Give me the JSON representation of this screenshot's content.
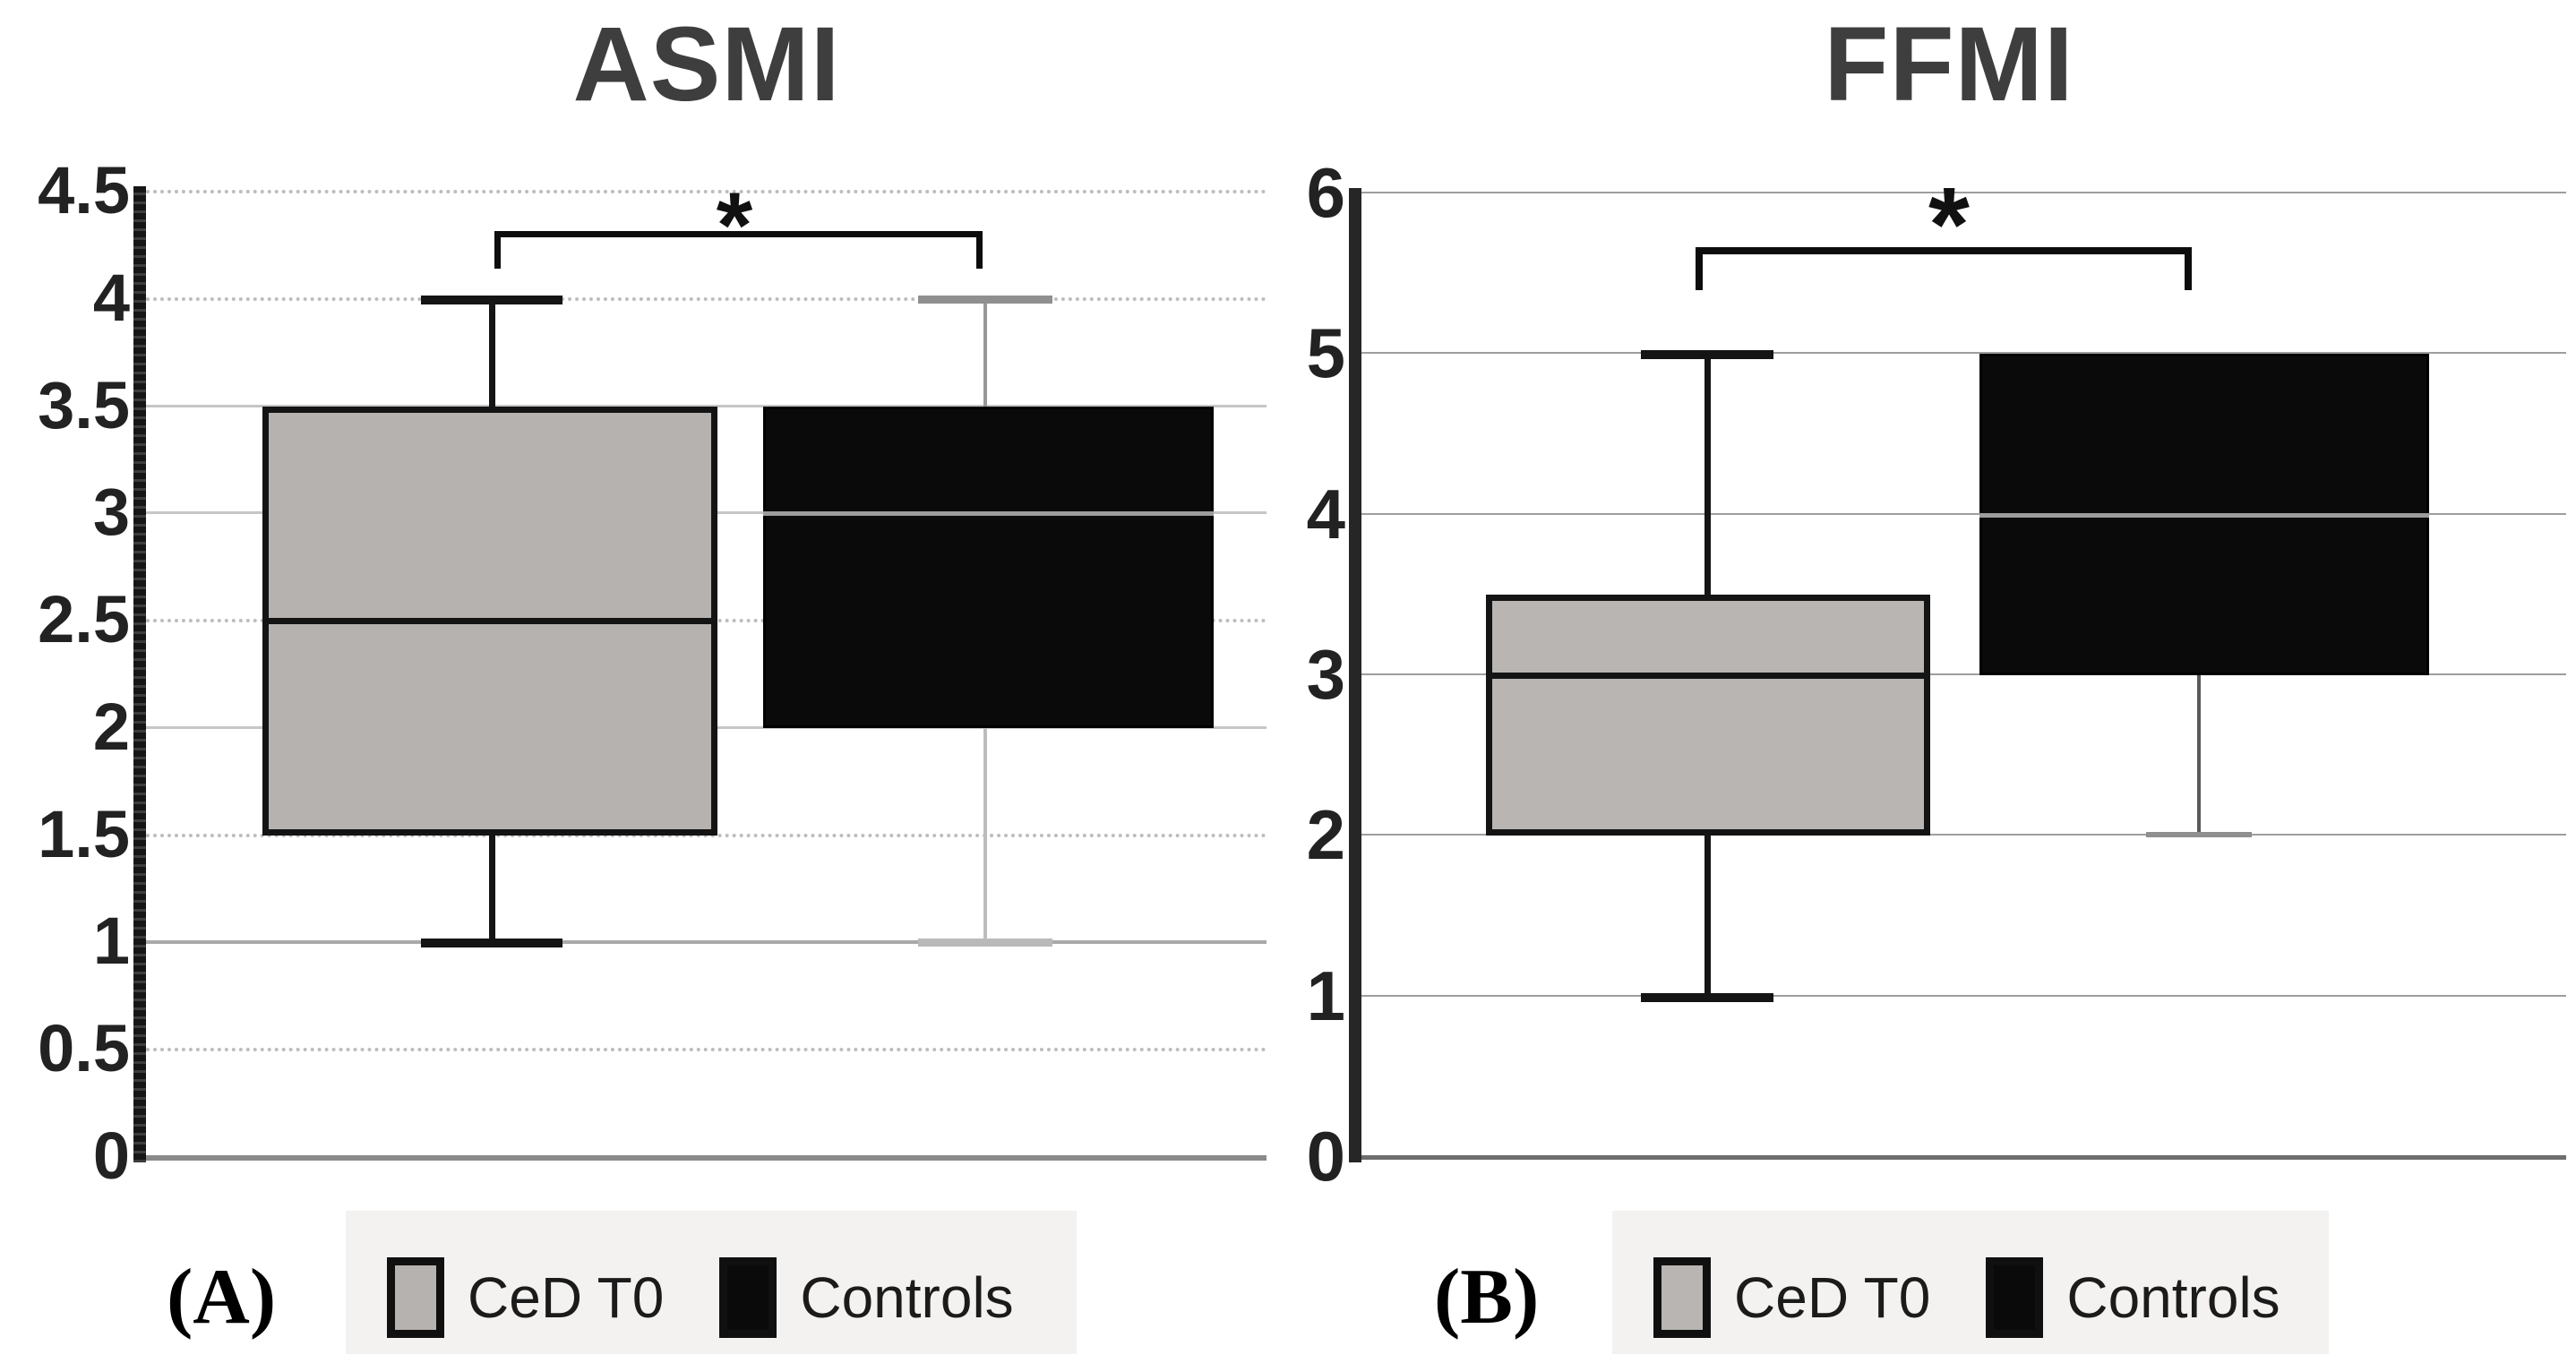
{
  "chart_data": [
    {
      "type": "box",
      "title": "ASMI",
      "panel_label": "(A)",
      "xlabel": "",
      "ylabel": "",
      "ylim": [
        0,
        4.5
      ],
      "ytick_step": 0.5,
      "yticks": [
        "4.5",
        "4",
        "3.5",
        "3",
        "2.5",
        "2",
        "1.5",
        "1",
        "0.5",
        "0"
      ],
      "grid": {
        "dotted_at": [
          4.5,
          4,
          2.5,
          1.5,
          0.5
        ],
        "solid_at": [
          3.5,
          3,
          2
        ],
        "solid_dark_at": [
          1
        ]
      },
      "legend_position": "bottom",
      "significance": {
        "symbol": "*",
        "between": [
          "CeD T0",
          "Controls"
        ]
      },
      "series": [
        {
          "name": "CeD T0",
          "min": 1,
          "q1": 1.5,
          "median": 2.5,
          "q3": 3.5,
          "max": 4,
          "fill": "#b5b2af",
          "whisker": "black-thick"
        },
        {
          "name": "Controls",
          "min": 1,
          "q1": 2,
          "median": 3,
          "q3": 3.5,
          "max": 4,
          "fill": "#0a0a0a",
          "whisker": "gray-thin"
        }
      ]
    },
    {
      "type": "box",
      "title": "FFMI",
      "panel_label": "(B)",
      "xlabel": "",
      "ylabel": "",
      "ylim": [
        0,
        6
      ],
      "ytick_step": 1,
      "yticks": [
        "6",
        "5",
        "4",
        "3",
        "2",
        "1",
        "0"
      ],
      "grid": {
        "dotted_at": [],
        "solid_at": [
          6,
          5,
          4,
          3,
          2,
          1
        ],
        "solid_dark_at": []
      },
      "legend_position": "bottom",
      "significance": {
        "symbol": "*",
        "between": [
          "CeD T0",
          "Controls"
        ]
      },
      "series": [
        {
          "name": "CeD T0",
          "min": 1,
          "q1": 2,
          "median": 3,
          "q3": 3.5,
          "max": 5,
          "fill": "#b8b5b2",
          "whisker": "black-thick"
        },
        {
          "name": "Controls",
          "min": 2,
          "q1": 3,
          "median": 4,
          "q3": 5,
          "max": 5,
          "fill": "#0a0a0a",
          "whisker": "gray-thin"
        }
      ]
    }
  ],
  "colors": {
    "ced_fill": "#b5b2af",
    "controls_fill": "#0a0a0a",
    "gridline": "#c6c6c6",
    "axis_dark": "#1c1c1c",
    "baseline_gray": "#8a8a8a",
    "legend_background": "#f3f2f0"
  }
}
